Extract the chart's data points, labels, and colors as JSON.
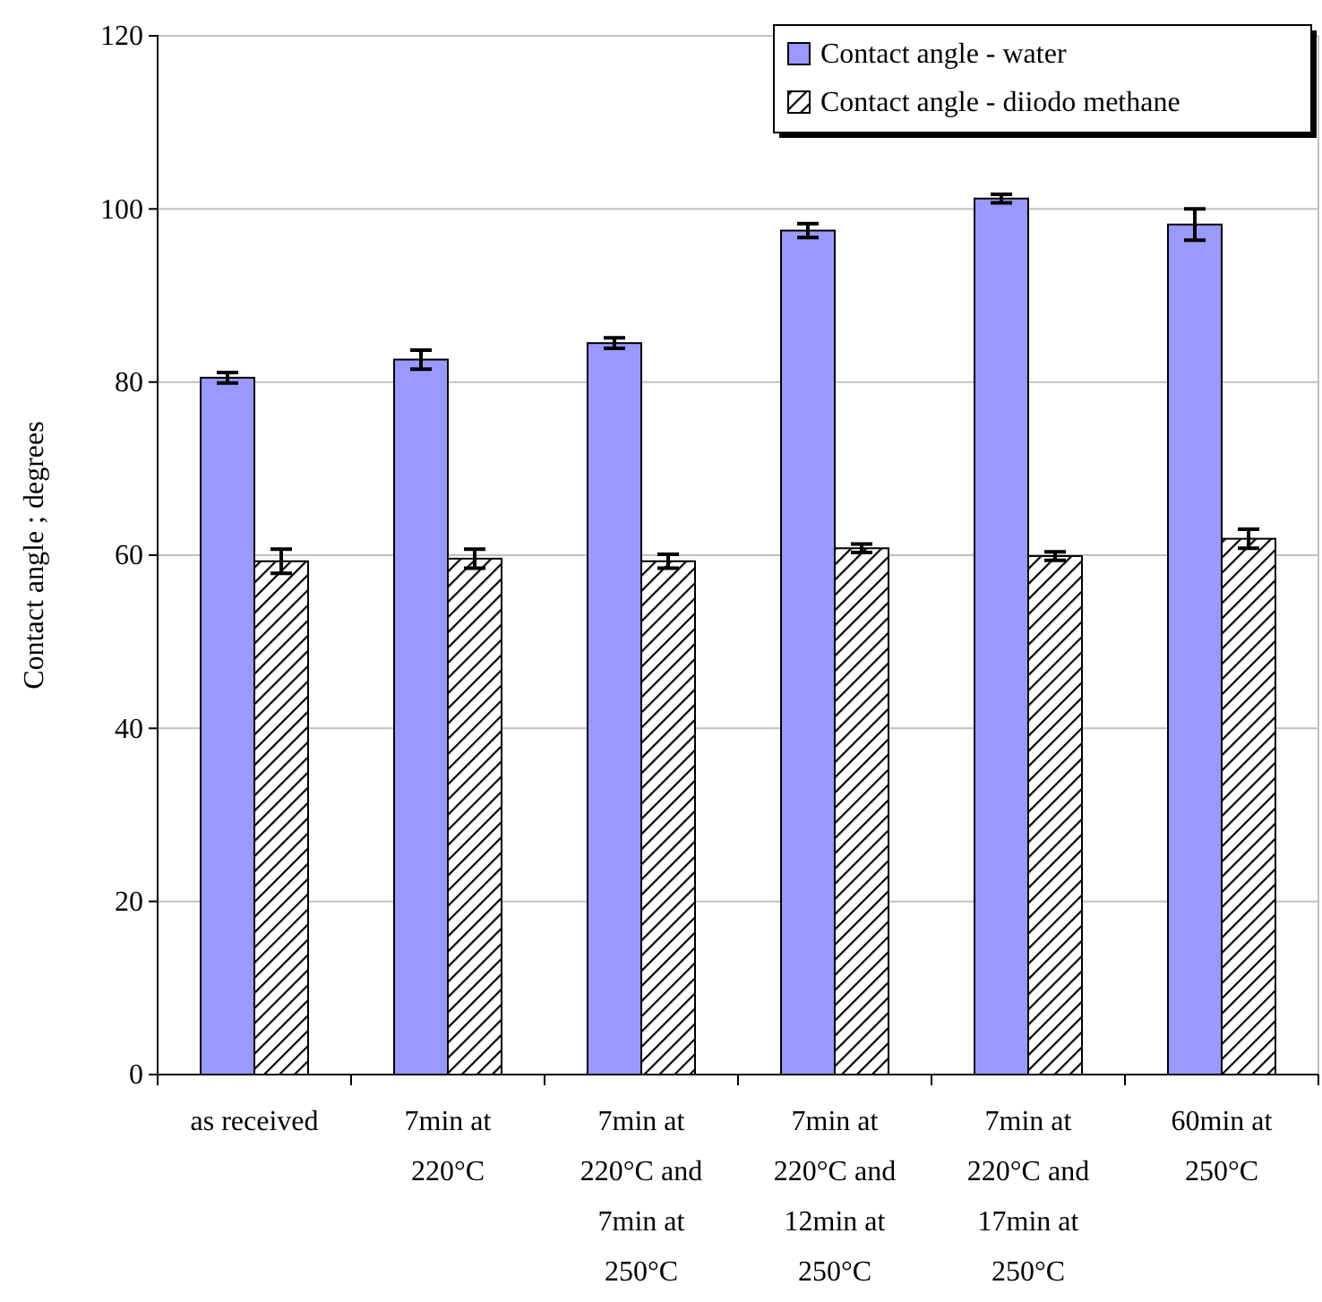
{
  "chart_data": {
    "type": "bar",
    "ylabel": "Contact angle ; degrees",
    "categories": [
      "as received",
      "7min at 220°C",
      "7min at 220°C and 7min at 250°C",
      "7min at 220°C and 12min at 250°C",
      "7min at 220°C and 17min at 250°C",
      "60min at 250°C"
    ],
    "series": [
      {
        "name": "Contact angle - water",
        "color": "#9999ff",
        "values": [
          80.5,
          82.6,
          84.5,
          97.5,
          101.2,
          98.2
        ],
        "errors": [
          0.6,
          1.1,
          0.6,
          0.8,
          0.5,
          1.8
        ]
      },
      {
        "name": "Contact angle - diiodo methane",
        "color": "#000000",
        "values": [
          59.3,
          59.6,
          59.3,
          60.8,
          59.9,
          61.9
        ],
        "errors": [
          1.4,
          1.1,
          0.8,
          0.5,
          0.5,
          1.1
        ]
      }
    ],
    "ylim": [
      0,
      120
    ],
    "yticks": [
      0,
      20,
      40,
      60,
      80,
      100,
      120
    ],
    "grid": "y",
    "legend": "top right"
  }
}
